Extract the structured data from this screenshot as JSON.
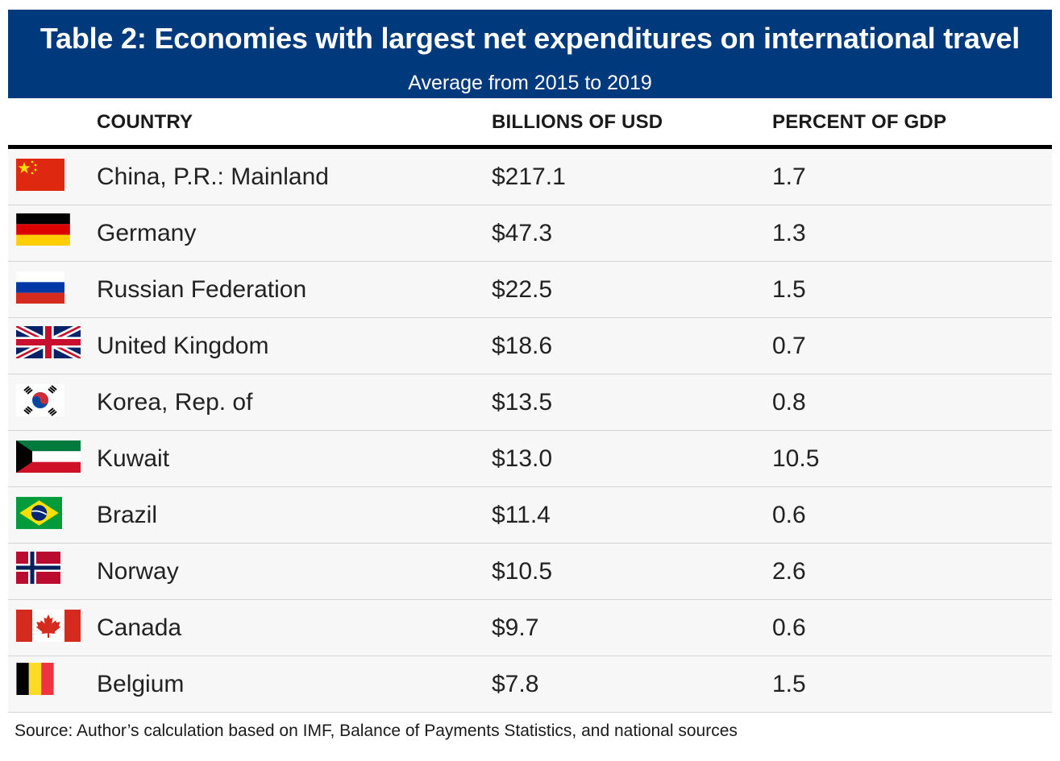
{
  "header": {
    "title": "Table 2: Economies with largest net expenditures on international travel",
    "subtitle": "Average from 2015 to 2019"
  },
  "columns": {
    "country": "COUNTRY",
    "usd": "BILLIONS OF USD",
    "gdp": "PERCENT OF GDP"
  },
  "chart_data": {
    "type": "table",
    "title": "Table 2: Economies with largest net expenditures on international travel",
    "subtitle": "Average from 2015 to 2019",
    "columns": [
      "COUNTRY",
      "BILLIONS OF USD",
      "PERCENT OF GDP"
    ],
    "rows": [
      {
        "flag": "china-flag-icon",
        "country": "China, P.R.: Mainland",
        "usd": "$217.1",
        "gdp": "1.7"
      },
      {
        "flag": "germany-flag-icon",
        "country": "Germany",
        "usd": "$47.3",
        "gdp": "1.3"
      },
      {
        "flag": "russia-flag-icon",
        "country": "Russian Federation",
        "usd": "$22.5",
        "gdp": "1.5"
      },
      {
        "flag": "uk-flag-icon",
        "country": "United Kingdom",
        "usd": "$18.6",
        "gdp": "0.7"
      },
      {
        "flag": "south-korea-flag-icon",
        "country": "Korea, Rep. of",
        "usd": "$13.5",
        "gdp": "0.8"
      },
      {
        "flag": "kuwait-flag-icon",
        "country": "Kuwait",
        "usd": "$13.0",
        "gdp": "10.5"
      },
      {
        "flag": "brazil-flag-icon",
        "country": "Brazil",
        "usd": "$11.4",
        "gdp": "0.6"
      },
      {
        "flag": "norway-flag-icon",
        "country": "Norway",
        "usd": "$10.5",
        "gdp": "2.6"
      },
      {
        "flag": "canada-flag-icon",
        "country": "Canada",
        "usd": "$9.7",
        "gdp": "0.6"
      },
      {
        "flag": "belgium-flag-icon",
        "country": "Belgium",
        "usd": "$7.8",
        "gdp": "1.5"
      }
    ]
  },
  "footer": {
    "source": "Source: Author’s calculation based on IMF, Balance of Payments Statistics, and national sources"
  },
  "colors": {
    "banner": "#003a7d",
    "row_bg": "#f7f7f7",
    "rule": "#000000"
  }
}
